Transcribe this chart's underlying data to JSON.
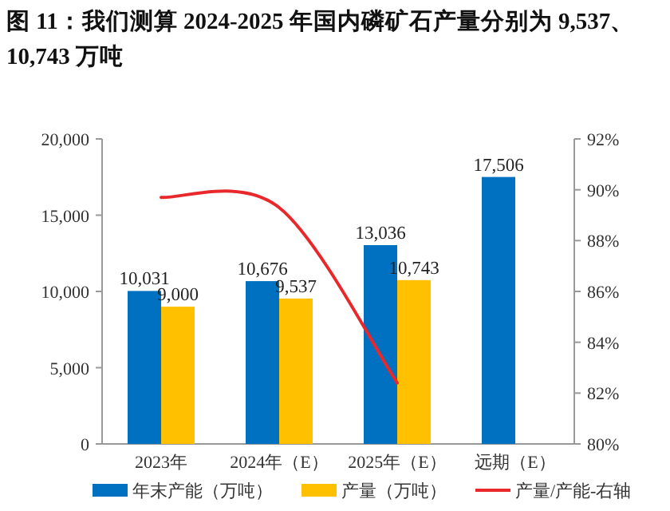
{
  "chart_data": {
    "type": "bar",
    "title": "图 11：我们测算 2024-2025 年国内磷矿石产量分别为 9,537、10,743 万吨",
    "categories": [
      "2023年",
      "2024年（E）",
      "2025年（E）",
      "远期（E）"
    ],
    "series": [
      {
        "name": "年末产能（万吨）",
        "color": "#0070c0",
        "values": [
          10031,
          10676,
          13036,
          17506
        ],
        "value_labels": [
          "10,031",
          "10,676",
          "13,036",
          "17,506"
        ]
      },
      {
        "name": "产量（万吨）",
        "color": "#ffc000",
        "values": [
          9000,
          9537,
          10743,
          null
        ],
        "value_labels": [
          "9,000",
          "9,537",
          "10,743",
          null
        ]
      },
      {
        "name": "产量/产能-右轴",
        "color": "#e8282b",
        "type": "line",
        "axis": "y2",
        "values": [
          89.7,
          89.3,
          82.4,
          null
        ]
      }
    ],
    "ylim": [
      0,
      20000
    ],
    "yticks": [
      0,
      {
        "value": 5000,
        "label": "5,000"
      },
      {
        "value": 10000,
        "label": "10,000"
      },
      {
        "value": 15000,
        "label": "15,000"
      },
      {
        "value": 20000,
        "label": "20,000"
      }
    ],
    "y2lim": [
      80,
      92
    ],
    "y2ticks": [
      {
        "value": 80,
        "label": "80%"
      },
      {
        "value": 82,
        "label": "82%"
      },
      {
        "value": 84,
        "label": "84%"
      },
      {
        "value": 86,
        "label": "86%"
      },
      {
        "value": 88,
        "label": "88%"
      },
      {
        "value": 90,
        "label": "90%"
      },
      {
        "value": 92,
        "label": "92%"
      }
    ],
    "legend": "bottom"
  }
}
